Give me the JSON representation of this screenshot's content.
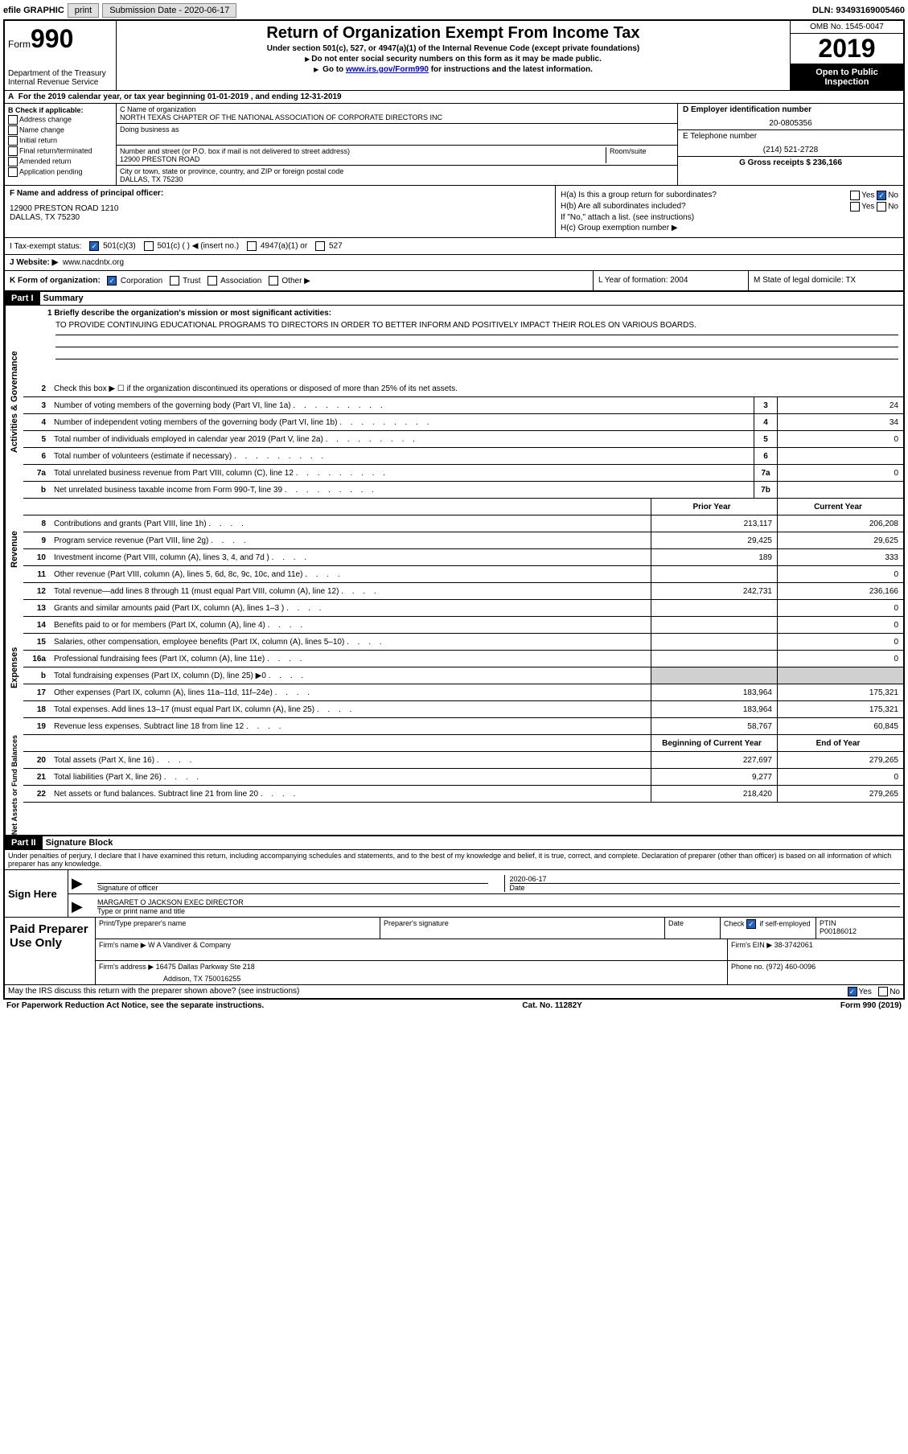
{
  "topbar": {
    "efile_label": "efile GRAPHIC",
    "print_btn": "print",
    "submission_label": "Submission Date - 2020-06-17",
    "dln": "DLN: 93493169005460"
  },
  "header": {
    "form_label": "Form",
    "form_num": "990",
    "dept": "Department of the Treasury\nInternal Revenue Service",
    "title": "Return of Organization Exempt From Income Tax",
    "subtitle": "Under section 501(c), 527, or 4947(a)(1) of the Internal Revenue Code (except private foundations)",
    "note1": "Do not enter social security numbers on this form as it may be made public.",
    "note2_prefix": "Go to ",
    "note2_link": "www.irs.gov/Form990",
    "note2_suffix": " for instructions and the latest information.",
    "omb": "OMB No. 1545-0047",
    "year": "2019",
    "open_public": "Open to Public Inspection"
  },
  "period": "For the 2019 calendar year, or tax year beginning 01-01-2019   , and ending 12-31-2019",
  "col_b": {
    "label": "B Check if applicable:",
    "items": [
      "Address change",
      "Name change",
      "Initial return",
      "Final return/terminated",
      "Amended return",
      "Application pending"
    ]
  },
  "col_c": {
    "name_label": "C Name of organization",
    "name": "NORTH TEXAS CHAPTER OF THE NATIONAL ASSOCIATION OF CORPORATE DIRECTORS INC",
    "dba_label": "Doing business as",
    "addr_label": "Number and street (or P.O. box if mail is not delivered to street address)",
    "room_label": "Room/suite",
    "addr": "12900 PRESTON ROAD",
    "city_label": "City or town, state or province, country, and ZIP or foreign postal code",
    "city": "DALLAS, TX   75230"
  },
  "col_d": {
    "ein_label": "D Employer identification number",
    "ein": "20-0805356",
    "phone_label": "E Telephone number",
    "phone": "(214) 521-2728",
    "gross_label": "G Gross receipts $ 236,166"
  },
  "section_f": {
    "label": "F  Name and address of principal officer:",
    "addr": "12900 PRESTON ROAD 1210\nDALLAS, TX   75230"
  },
  "section_h": {
    "ha": "H(a)  Is this a group return for subordinates?",
    "hb": "H(b)  Are all subordinates included?",
    "hb_note": "If \"No,\" attach a list. (see instructions)",
    "hc": "H(c)  Group exemption number ▶"
  },
  "tax_exempt": {
    "label": "I   Tax-exempt status:",
    "opt1": "501(c)(3)",
    "opt2": "501(c) (  ) ◀ (insert no.)",
    "opt3": "4947(a)(1) or",
    "opt4": "527"
  },
  "website": {
    "label": "J   Website: ▶",
    "value": "www.nacdntx.org"
  },
  "k_row": {
    "label": "K Form of organization:",
    "corp": "Corporation",
    "trust": "Trust",
    "assoc": "Association",
    "other": "Other ▶",
    "year_label": "L Year of formation: 2004",
    "state_label": "M State of legal domicile: TX"
  },
  "part1": {
    "header": "Part I",
    "title": "Summary",
    "line1_label": "1   Briefly describe the organization's mission or most significant activities:",
    "mission": "TO PROVIDE CONTINUING EDUCATIONAL PROGRAMS TO DIRECTORS IN ORDER TO BETTER INFORM AND POSITIVELY IMPACT THEIR ROLES ON VARIOUS BOARDS.",
    "line2": "Check this box ▶ ☐  if the organization discontinued its operations or disposed of more than 25% of its net assets.",
    "side_activities": "Activities & Governance",
    "side_revenue": "Revenue",
    "side_expenses": "Expenses",
    "side_net": "Net Assets or Fund Balances",
    "prior_year": "Prior Year",
    "current_year": "Current Year",
    "begin_year": "Beginning of Current Year",
    "end_year": "End of Year"
  },
  "lines_ag": [
    {
      "num": "3",
      "desc": "Number of voting members of the governing body (Part VI, line 1a)",
      "box": "3",
      "val": "24"
    },
    {
      "num": "4",
      "desc": "Number of independent voting members of the governing body (Part VI, line 1b)",
      "box": "4",
      "val": "34"
    },
    {
      "num": "5",
      "desc": "Total number of individuals employed in calendar year 2019 (Part V, line 2a)",
      "box": "5",
      "val": "0"
    },
    {
      "num": "6",
      "desc": "Total number of volunteers (estimate if necessary)",
      "box": "6",
      "val": ""
    },
    {
      "num": "7a",
      "desc": "Total unrelated business revenue from Part VIII, column (C), line 12",
      "box": "7a",
      "val": "0"
    },
    {
      "num": "b",
      "desc": "Net unrelated business taxable income from Form 990-T, line 39",
      "box": "7b",
      "val": ""
    }
  ],
  "lines_rev": [
    {
      "num": "8",
      "desc": "Contributions and grants (Part VIII, line 1h)",
      "prior": "213,117",
      "curr": "206,208"
    },
    {
      "num": "9",
      "desc": "Program service revenue (Part VIII, line 2g)",
      "prior": "29,425",
      "curr": "29,625"
    },
    {
      "num": "10",
      "desc": "Investment income (Part VIII, column (A), lines 3, 4, and 7d )",
      "prior": "189",
      "curr": "333"
    },
    {
      "num": "11",
      "desc": "Other revenue (Part VIII, column (A), lines 5, 6d, 8c, 9c, 10c, and 11e)",
      "prior": "",
      "curr": "0"
    },
    {
      "num": "12",
      "desc": "Total revenue—add lines 8 through 11 (must equal Part VIII, column (A), line 12)",
      "prior": "242,731",
      "curr": "236,166"
    }
  ],
  "lines_exp": [
    {
      "num": "13",
      "desc": "Grants and similar amounts paid (Part IX, column (A), lines 1–3 )",
      "prior": "",
      "curr": "0"
    },
    {
      "num": "14",
      "desc": "Benefits paid to or for members (Part IX, column (A), line 4)",
      "prior": "",
      "curr": "0"
    },
    {
      "num": "15",
      "desc": "Salaries, other compensation, employee benefits (Part IX, column (A), lines 5–10)",
      "prior": "",
      "curr": "0"
    },
    {
      "num": "16a",
      "desc": "Professional fundraising fees (Part IX, column (A), line 11e)",
      "prior": "",
      "curr": "0"
    },
    {
      "num": "b",
      "desc": "Total fundraising expenses (Part IX, column (D), line 25) ▶0",
      "prior": "SHADED",
      "curr": "SHADED"
    },
    {
      "num": "17",
      "desc": "Other expenses (Part IX, column (A), lines 11a–11d, 11f–24e)",
      "prior": "183,964",
      "curr": "175,321"
    },
    {
      "num": "18",
      "desc": "Total expenses. Add lines 13–17 (must equal Part IX, column (A), line 25)",
      "prior": "183,964",
      "curr": "175,321"
    },
    {
      "num": "19",
      "desc": "Revenue less expenses. Subtract line 18 from line 12",
      "prior": "58,767",
      "curr": "60,845"
    }
  ],
  "lines_net": [
    {
      "num": "20",
      "desc": "Total assets (Part X, line 16)",
      "prior": "227,697",
      "curr": "279,265"
    },
    {
      "num": "21",
      "desc": "Total liabilities (Part X, line 26)",
      "prior": "9,277",
      "curr": "0"
    },
    {
      "num": "22",
      "desc": "Net assets or fund balances. Subtract line 21 from line 20",
      "prior": "218,420",
      "curr": "279,265"
    }
  ],
  "part2": {
    "header": "Part II",
    "title": "Signature Block",
    "penalty": "Under penalties of perjury, I declare that I have examined this return, including accompanying schedules and statements, and to the best of my knowledge and belief, it is true, correct, and complete. Declaration of preparer (other than officer) is based on all information of which preparer has any knowledge."
  },
  "sign": {
    "label": "Sign Here",
    "sig_officer": "Signature of officer",
    "date": "2020-06-17",
    "date_label": "Date",
    "name": "MARGARET O JACKSON  EXEC DIRECTOR",
    "name_label": "Type or print name and title"
  },
  "paid": {
    "label": "Paid Preparer Use Only",
    "col1": "Print/Type preparer's name",
    "col2": "Preparer's signature",
    "col3": "Date",
    "col4_a": "Check",
    "col4_b": "if self-employed",
    "col5": "PTIN",
    "ptin": "P00186012",
    "firm_name_label": "Firm's name    ▶",
    "firm_name": "W A Vandiver & Company",
    "firm_ein_label": "Firm's EIN ▶",
    "firm_ein": "38-3742061",
    "firm_addr_label": "Firm's address ▶",
    "firm_addr1": "16475 Dallas Parkway Ste 218",
    "firm_addr2": "Addison, TX   750016255",
    "phone_label": "Phone no.",
    "phone": "(972) 460-0096"
  },
  "footer": {
    "discuss": "May the IRS discuss this return with the preparer shown above? (see instructions)",
    "paperwork": "For Paperwork Reduction Act Notice, see the separate instructions.",
    "cat": "Cat. No. 11282Y",
    "form": "Form 990 (2019)"
  }
}
